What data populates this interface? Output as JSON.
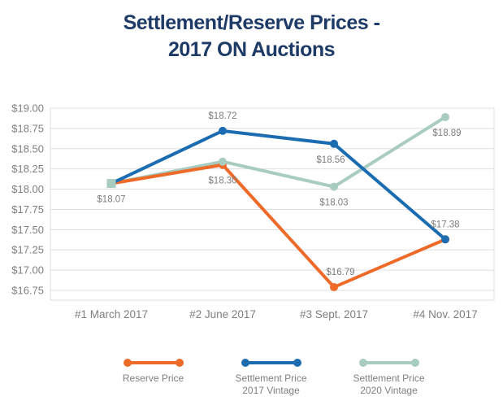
{
  "chart_data": {
    "type": "line",
    "title": "Settlement/Reserve Prices - 2017 ON Auctions",
    "title_lines": [
      "Settlement/Reserve Prices -",
      "2017 ON Auctions"
    ],
    "title_color": "#1E3A66",
    "grid": true,
    "grid_color": "#DFDFDF",
    "legend_position": "bottom",
    "categories": [
      "#1 March 2017",
      "#2 June 2017",
      "#3 Sept. 2017",
      "#4 Nov. 2017"
    ],
    "y_axis": {
      "min": 16.75,
      "max": 19.0,
      "step": 0.25,
      "tick_values": [
        19.0,
        18.75,
        18.5,
        18.25,
        18.0,
        17.75,
        17.5,
        17.25,
        17.0,
        16.75
      ],
      "tick_labels": [
        "$19.00",
        "$18.75",
        "$18.50",
        "$18.25",
        "$18.00",
        "$17.75",
        "$17.50",
        "$17.25",
        "$17.00",
        "$16.75"
      ]
    },
    "series": [
      {
        "id": "reserve-price",
        "name": "Reserve Price",
        "color": "#EE6A28",
        "values": [
          18.07,
          18.3,
          16.79,
          17.38
        ],
        "data_labels": [
          {
            "text": "$18.07",
            "pos": "below"
          },
          {
            "text": "$18.30",
            "pos": "below"
          },
          {
            "text": "$16.79",
            "pos": "above",
            "dx": 8
          },
          null
        ]
      },
      {
        "id": "settlement-2017",
        "name": "Settlement Price\n2017 Vintage",
        "color": "#1C6CB1",
        "values": [
          18.07,
          18.72,
          18.56,
          17.38
        ],
        "data_labels": [
          null,
          {
            "text": "$18.72",
            "pos": "above"
          },
          {
            "text": "$18.56",
            "pos": "below",
            "dx": -4
          },
          {
            "text": "$17.38",
            "pos": "above"
          }
        ]
      },
      {
        "id": "settlement-2020",
        "name": "Settlement Price\n2020 Vintage",
        "color": "#A9CCC0",
        "values": [
          18.07,
          18.34,
          18.03,
          18.89
        ],
        "markers": [
          "square",
          "circle",
          "circle",
          "circle"
        ],
        "data_labels": [
          null,
          null,
          {
            "text": "$18.03",
            "pos": "below"
          },
          {
            "text": "$18.89",
            "pos": "below",
            "dx": 2
          }
        ]
      }
    ]
  }
}
